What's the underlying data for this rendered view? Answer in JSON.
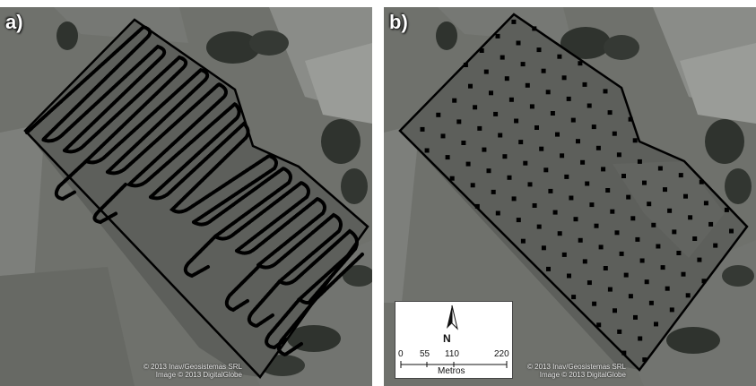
{
  "panels": [
    {
      "label": "a)",
      "credit_line1": "© 2013 Inav/Geosistemas SRL",
      "credit_line2": "Image © 2013 DigitalGlobe"
    },
    {
      "label": "b)",
      "credit_line1": "© 2013 Inav/Geosistemas SRL",
      "credit_line2": "Image © 2013 DigitalGlobe"
    }
  ],
  "inset": {
    "north": "N",
    "scale_ticks": [
      "0",
      "55",
      "110",
      "220"
    ],
    "scale_unit": "Metros"
  },
  "colors": {
    "background": "#6f716c",
    "field": "#5d5f5b",
    "field_light": "#868884",
    "boundary": "#000000",
    "trees": "#2f332e"
  }
}
